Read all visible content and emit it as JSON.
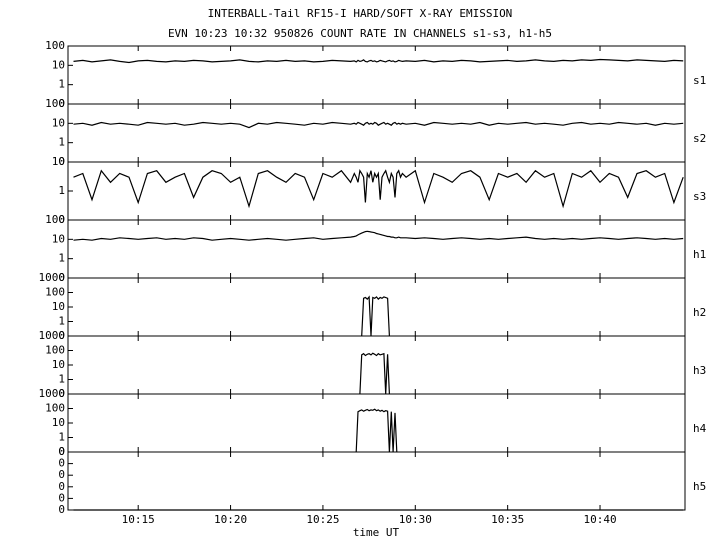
{
  "chart_data": {
    "type": "line",
    "title": "INTERBALL-Tail RF15-I HARD/SOFT X-RAY EMISSION",
    "subtitle": "EVN 10:23 10:32 950826  COUNT RATE IN CHANNELS s1-s3, h1-h5",
    "xlabel": "time UT",
    "xlim": [
      611.2,
      644.6
    ],
    "xticks": [
      {
        "value": 615,
        "label": "10:15"
      },
      {
        "value": 620,
        "label": "10:20"
      },
      {
        "value": 625,
        "label": "10:25"
      },
      {
        "value": 630,
        "label": "10:30"
      },
      {
        "value": 635,
        "label": "10:35"
      },
      {
        "value": 640,
        "label": "10:40"
      }
    ],
    "x": [
      611.5,
      612,
      612.5,
      613,
      613.5,
      614,
      614.5,
      615,
      615.5,
      616,
      616.5,
      617,
      617.5,
      618,
      618.5,
      619,
      619.5,
      620,
      620.5,
      621,
      621.5,
      622,
      622.5,
      623,
      623.5,
      624,
      624.5,
      625,
      625.5,
      626,
      626.5,
      626.7,
      626.8,
      626.9,
      627.0,
      627.1,
      627.2,
      627.3,
      627.4,
      627.5,
      627.6,
      627.7,
      627.8,
      627.9,
      628.0,
      628.1,
      628.2,
      628.3,
      628.4,
      628.5,
      628.6,
      628.7,
      628.8,
      628.9,
      629.0,
      629.1,
      629.2,
      629.3,
      629.5,
      630,
      630.5,
      631,
      631.5,
      632,
      632.5,
      633,
      633.5,
      634,
      634.5,
      635,
      635.5,
      636,
      636.5,
      637,
      637.5,
      638,
      638.5,
      639,
      639.5,
      640,
      640.5,
      641,
      641.5,
      642,
      642.5,
      643,
      643.5,
      644,
      644.5
    ],
    "series": [
      {
        "name": "s1",
        "color": "#000000",
        "log": true,
        "ylim": [
          0.1,
          100
        ],
        "yticks": [
          {
            "value": 0.1,
            "label": "0"
          },
          1,
          10,
          100
        ],
        "values": [
          16,
          18,
          15,
          17,
          19,
          16,
          14,
          17,
          18,
          16,
          15,
          17,
          16,
          18,
          17,
          15,
          16,
          17,
          19,
          16,
          15,
          17,
          16,
          18,
          16,
          17,
          15,
          16,
          18,
          17,
          16,
          17,
          15,
          18,
          16,
          17,
          19,
          16,
          15,
          17,
          18,
          16,
          17,
          15,
          16,
          18,
          17,
          16,
          15,
          17,
          18,
          16,
          17,
          15,
          16,
          18,
          17,
          16,
          17,
          16,
          18,
          15,
          17,
          16,
          18,
          17,
          15,
          16,
          17,
          18,
          16,
          17,
          19,
          17,
          16,
          18,
          17,
          19,
          18,
          20,
          19,
          18,
          17,
          19,
          18,
          17,
          16,
          18,
          17
        ]
      },
      {
        "name": "s2",
        "color": "#000000",
        "log": true,
        "ylim": [
          0.1,
          100
        ],
        "yticks": [
          {
            "value": 0.1,
            "label": "0"
          },
          1,
          10,
          100
        ],
        "values": [
          9,
          10,
          8,
          11,
          9,
          10,
          9,
          8,
          11,
          10,
          9,
          10,
          8,
          9,
          11,
          10,
          9,
          10,
          9,
          6,
          10,
          9,
          11,
          10,
          9,
          8,
          10,
          9,
          11,
          10,
          9,
          10,
          9,
          11,
          10,
          9,
          8,
          10,
          11,
          9,
          10,
          9,
          11,
          10,
          8,
          9,
          10,
          11,
          9,
          10,
          9,
          8,
          10,
          11,
          9,
          10,
          9,
          10,
          9,
          10,
          8,
          11,
          10,
          9,
          10,
          9,
          11,
          8,
          10,
          9,
          10,
          11,
          9,
          10,
          9,
          8,
          10,
          11,
          9,
          10,
          9,
          11,
          10,
          9,
          10,
          8,
          10,
          9,
          10
        ]
      },
      {
        "name": "s3",
        "color": "#000000",
        "log": true,
        "ylim": [
          0.1,
          10
        ],
        "yticks": [
          {
            "value": 0.1,
            "label": "0"
          },
          1,
          10
        ],
        "values": [
          3,
          4,
          0.5,
          5,
          2,
          4,
          3,
          0.4,
          4,
          5,
          2,
          3,
          4,
          0.6,
          3,
          5,
          4,
          2,
          3,
          0.3,
          4,
          5,
          3,
          2,
          4,
          3,
          0.5,
          4,
          3,
          5,
          2,
          4,
          3,
          2,
          5,
          4,
          3,
          0.4,
          4,
          3,
          5,
          2,
          4,
          3,
          4,
          0.5,
          3,
          4,
          5,
          3,
          2,
          4,
          3,
          0.6,
          4,
          5,
          3,
          4,
          3,
          5,
          0.4,
          4,
          3,
          2,
          4,
          5,
          3,
          0.5,
          4,
          3,
          4,
          2,
          5,
          3,
          4,
          0.3,
          4,
          3,
          5,
          2,
          4,
          3,
          0.6,
          4,
          5,
          3,
          4,
          0.4,
          3
        ]
      },
      {
        "name": "h1",
        "color": "#000000",
        "log": true,
        "ylim": [
          0.1,
          100
        ],
        "yticks": [
          {
            "value": 0.1,
            "label": "0"
          },
          1,
          10,
          100
        ],
        "values": [
          9,
          10,
          9,
          11,
          10,
          12,
          11,
          10,
          11,
          12,
          10,
          11,
          10,
          12,
          11,
          9,
          10,
          11,
          10,
          9,
          10,
          11,
          10,
          9,
          10,
          11,
          12,
          10,
          11,
          12,
          13,
          14,
          15,
          17,
          19,
          21,
          23,
          25,
          26,
          25,
          24,
          23,
          22,
          20,
          19,
          18,
          17,
          16,
          15,
          14,
          14,
          13,
          13,
          12,
          12,
          13,
          12,
          12,
          12,
          11,
          12,
          11,
          10,
          11,
          12,
          11,
          10,
          11,
          10,
          11,
          12,
          13,
          11,
          10,
          11,
          10,
          11,
          10,
          11,
          12,
          11,
          10,
          11,
          12,
          11,
          10,
          11,
          10,
          11
        ]
      },
      {
        "name": "h2",
        "color": "#000000",
        "log": true,
        "ylim": [
          0.1,
          1000
        ],
        "yticks": [
          {
            "value": 0.1,
            "label": "0"
          },
          1,
          10,
          100,
          1000
        ],
        "values": [
          null,
          null,
          null,
          null,
          null,
          null,
          null,
          null,
          null,
          null,
          null,
          null,
          null,
          null,
          null,
          null,
          null,
          null,
          null,
          null,
          null,
          null,
          null,
          null,
          null,
          null,
          null,
          null,
          null,
          null,
          null,
          null,
          null,
          null,
          null,
          0.1,
          40,
          45,
          35,
          50,
          0.1,
          45,
          40,
          50,
          35,
          45,
          40,
          50,
          45,
          40,
          0.1,
          null,
          null,
          null,
          null,
          null,
          null,
          null,
          null,
          null,
          null,
          null,
          null,
          null,
          null,
          null,
          null,
          null,
          null,
          null,
          null,
          null,
          null,
          null,
          null,
          null,
          null,
          null,
          null,
          null,
          null,
          null,
          null,
          null,
          null,
          null,
          null,
          null,
          null
        ]
      },
      {
        "name": "h3",
        "color": "#000000",
        "log": true,
        "ylim": [
          0.1,
          1000
        ],
        "yticks": [
          {
            "value": 0.1,
            "label": "0"
          },
          1,
          10,
          100,
          1000
        ],
        "values": [
          null,
          null,
          null,
          null,
          null,
          null,
          null,
          null,
          null,
          null,
          null,
          null,
          null,
          null,
          null,
          null,
          null,
          null,
          null,
          null,
          null,
          null,
          null,
          null,
          null,
          null,
          null,
          null,
          null,
          null,
          null,
          null,
          null,
          null,
          0.1,
          50,
          60,
          45,
          55,
          60,
          50,
          65,
          55,
          45,
          60,
          50,
          55,
          60,
          0.1,
          55,
          0.1,
          null,
          null,
          null,
          null,
          null,
          null,
          null,
          null,
          null,
          null,
          null,
          null,
          null,
          null,
          null,
          null,
          null,
          null,
          null,
          null,
          null,
          null,
          null,
          null,
          null,
          null,
          null,
          null,
          null,
          null,
          null,
          null,
          null,
          null,
          null,
          null,
          null,
          null
        ]
      },
      {
        "name": "h4",
        "color": "#000000",
        "log": true,
        "ylim": [
          0.1,
          1000
        ],
        "yticks": [
          {
            "value": 0.1,
            "label": "0"
          },
          1,
          10,
          100,
          1000
        ],
        "values": [
          null,
          null,
          null,
          null,
          null,
          null,
          null,
          null,
          null,
          null,
          null,
          null,
          null,
          null,
          null,
          null,
          null,
          null,
          null,
          null,
          null,
          null,
          null,
          null,
          null,
          null,
          null,
          null,
          null,
          null,
          null,
          null,
          0.1,
          60,
          70,
          80,
          65,
          75,
          85,
          70,
          80,
          75,
          90,
          70,
          80,
          65,
          75,
          60,
          70,
          65,
          0.1,
          60,
          0.1,
          50,
          0.1,
          null,
          null,
          null,
          null,
          null,
          null,
          null,
          null,
          null,
          null,
          null,
          null,
          null,
          null,
          null,
          null,
          null,
          null,
          null,
          null,
          null,
          null,
          null,
          null,
          null,
          null,
          null,
          null,
          null,
          null,
          null,
          null,
          null,
          null
        ]
      },
      {
        "name": "h5",
        "color": "#000000",
        "log": false,
        "ylim": [
          0,
          1
        ],
        "yticks": [
          0,
          {
            "value": 0.2,
            "label": "0"
          },
          {
            "value": 0.4,
            "label": "0"
          },
          {
            "value": 0.6,
            "label": "0"
          },
          {
            "value": 0.8,
            "label": "0"
          },
          {
            "value": 1,
            "label": "0"
          }
        ],
        "values": [
          0,
          0,
          0,
          0,
          0,
          0,
          0,
          0,
          0,
          0,
          0,
          0,
          0,
          0,
          0,
          0,
          0,
          0,
          0,
          0,
          0,
          0,
          0,
          0,
          0,
          0,
          0,
          0,
          0,
          0,
          0,
          0,
          0,
          0,
          0,
          0,
          0,
          0,
          0,
          0,
          0,
          0,
          0,
          0,
          0,
          0,
          0,
          0,
          0,
          0,
          0,
          0,
          0,
          0,
          0,
          0,
          0,
          0,
          0,
          0,
          0,
          0,
          0,
          0,
          0,
          0,
          0,
          0,
          0,
          0,
          0,
          0,
          0,
          0,
          0,
          0,
          0,
          0,
          0,
          0,
          0,
          0,
          0,
          0,
          0,
          0,
          0,
          0,
          0
        ]
      }
    ]
  }
}
